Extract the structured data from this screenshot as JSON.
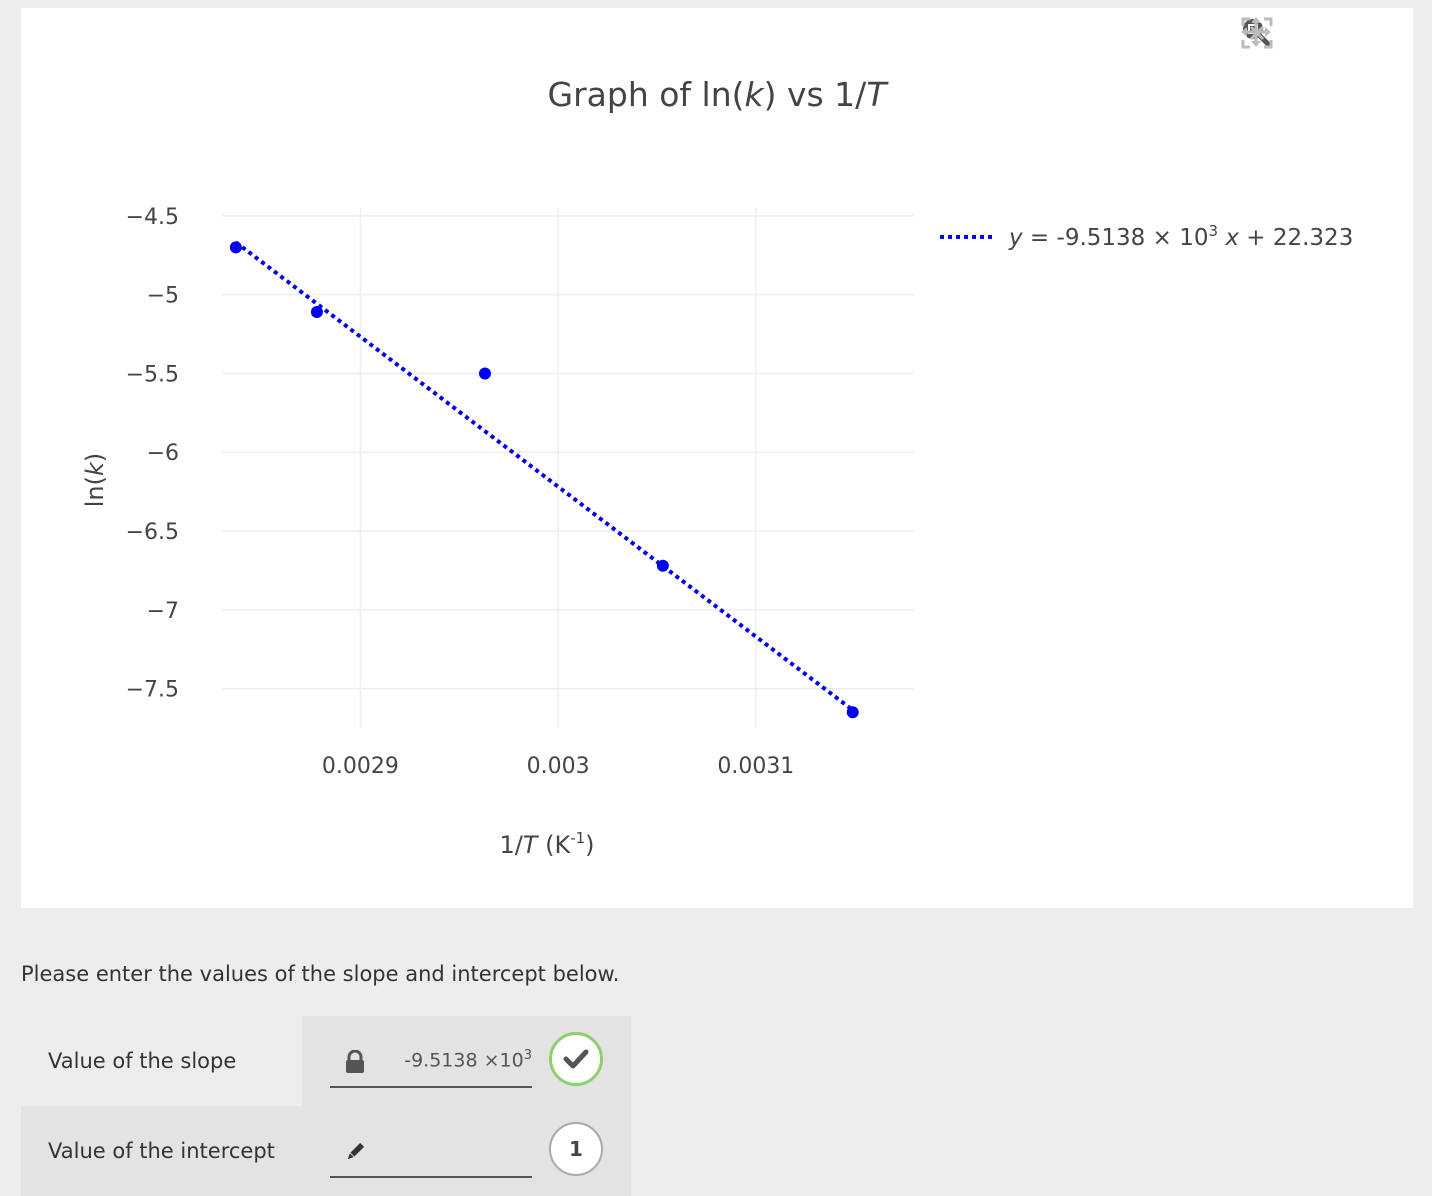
{
  "chart_data": {
    "type": "scatter",
    "title": "Graph of ln(k) vs 1/T",
    "title_parts": {
      "a": "Graph of ln(",
      "k": "k",
      "b": ") vs 1/",
      "T": "T"
    },
    "xlabel": "1/T (K-1)",
    "xlabel_parts": {
      "a": "1/",
      "T": "T",
      "b": " (K",
      "sup": "-1",
      "c": ")"
    },
    "ylabel": "ln(k)",
    "ylabel_parts": {
      "a": "ln(",
      "k": "k",
      "b": ")"
    },
    "xlim": [
      0.00283,
      0.00318
    ],
    "ylim": [
      -7.75,
      -4.45
    ],
    "x_ticks": [
      0.0029,
      0.003,
      0.0031
    ],
    "x_tick_labels": [
      "0.0029",
      "0.003",
      "0.0031"
    ],
    "y_ticks": [
      -4.5,
      -5,
      -5.5,
      -6,
      -6.5,
      -7,
      -7.5
    ],
    "y_tick_labels": [
      "−4.5",
      "−5",
      "−5.5",
      "−6",
      "−6.5",
      "−7",
      "−7.5"
    ],
    "grid": true,
    "series": [
      {
        "kind": "markers",
        "color": "#0000ee",
        "x": [
          0.002837,
          0.002878,
          0.002963,
          0.003053,
          0.003149
        ],
        "y": [
          -4.7,
          -5.11,
          -5.5,
          -6.72,
          -7.65
        ]
      },
      {
        "kind": "dotted-line",
        "name": "y = -9.5138 × 10³ x + 22.323",
        "color": "#0000ee",
        "slope": -9513.8,
        "intercept": 22.323,
        "x": [
          0.002837,
          0.003149
        ]
      }
    ],
    "legend": {
      "position": "top-right",
      "parts": {
        "y": "y",
        "eq": " = -9.5138 × 10",
        "sup": "3",
        "sp": " ",
        "x": "x",
        "rest": " + 22.323"
      }
    }
  },
  "modebar": {
    "icons": [
      "zoom-icon",
      "pan-icon",
      "autoscale-icon"
    ]
  },
  "prompt": "Please enter the values of the slope and intercept below.",
  "answers": [
    {
      "label": "Value of the slope",
      "value": "-9.5138 ×10",
      "value_sup": "3",
      "status": "correct"
    },
    {
      "label": "Value of the intercept",
      "value": "",
      "status": "1"
    }
  ],
  "colors": {
    "marker": "#0000ee",
    "correct": "#8dcf6c",
    "panel": "#ffffff",
    "background": "#ededed"
  }
}
